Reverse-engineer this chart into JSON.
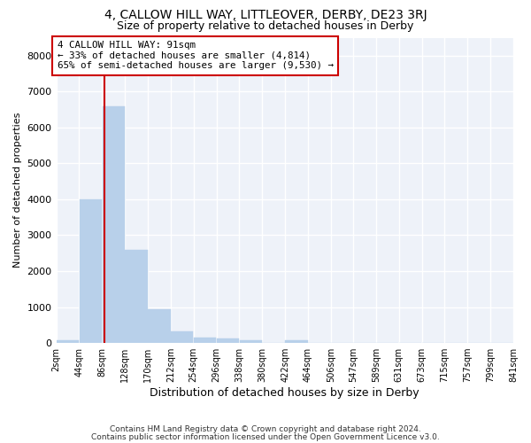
{
  "title": "4, CALLOW HILL WAY, LITTLEOVER, DERBY, DE23 3RJ",
  "subtitle": "Size of property relative to detached houses in Derby",
  "xlabel": "Distribution of detached houses by size in Derby",
  "ylabel": "Number of detached properties",
  "bin_edges": [
    2,
    44,
    86,
    128,
    170,
    212,
    254,
    296,
    338,
    380,
    422,
    464,
    506,
    547,
    589,
    631,
    673,
    715,
    757,
    799,
    841
  ],
  "bin_labels": [
    "2sqm",
    "44sqm",
    "86sqm",
    "128sqm",
    "170sqm",
    "212sqm",
    "254sqm",
    "296sqm",
    "338sqm",
    "380sqm",
    "422sqm",
    "464sqm",
    "506sqm",
    "547sqm",
    "589sqm",
    "631sqm",
    "673sqm",
    "715sqm",
    "757sqm",
    "799sqm",
    "841sqm"
  ],
  "bar_heights": [
    75,
    4000,
    6600,
    2600,
    950,
    325,
    150,
    125,
    75,
    0,
    75,
    0,
    0,
    0,
    0,
    0,
    0,
    0,
    0,
    0
  ],
  "bar_color": "#b8d0ea",
  "bar_edgecolor": "#b8d0ea",
  "property_size": 91,
  "vline_color": "#cc0000",
  "annotation_text": "4 CALLOW HILL WAY: 91sqm\n← 33% of detached houses are smaller (4,814)\n65% of semi-detached houses are larger (9,530) →",
  "annotation_box_color": "white",
  "annotation_box_edgecolor": "#cc0000",
  "ylim": [
    0,
    8500
  ],
  "yticks": [
    0,
    1000,
    2000,
    3000,
    4000,
    5000,
    6000,
    7000,
    8000
  ],
  "background_color": "#eef2f9",
  "grid_color": "white",
  "footer1": "Contains HM Land Registry data © Crown copyright and database right 2024.",
  "footer2": "Contains public sector information licensed under the Open Government Licence v3.0."
}
